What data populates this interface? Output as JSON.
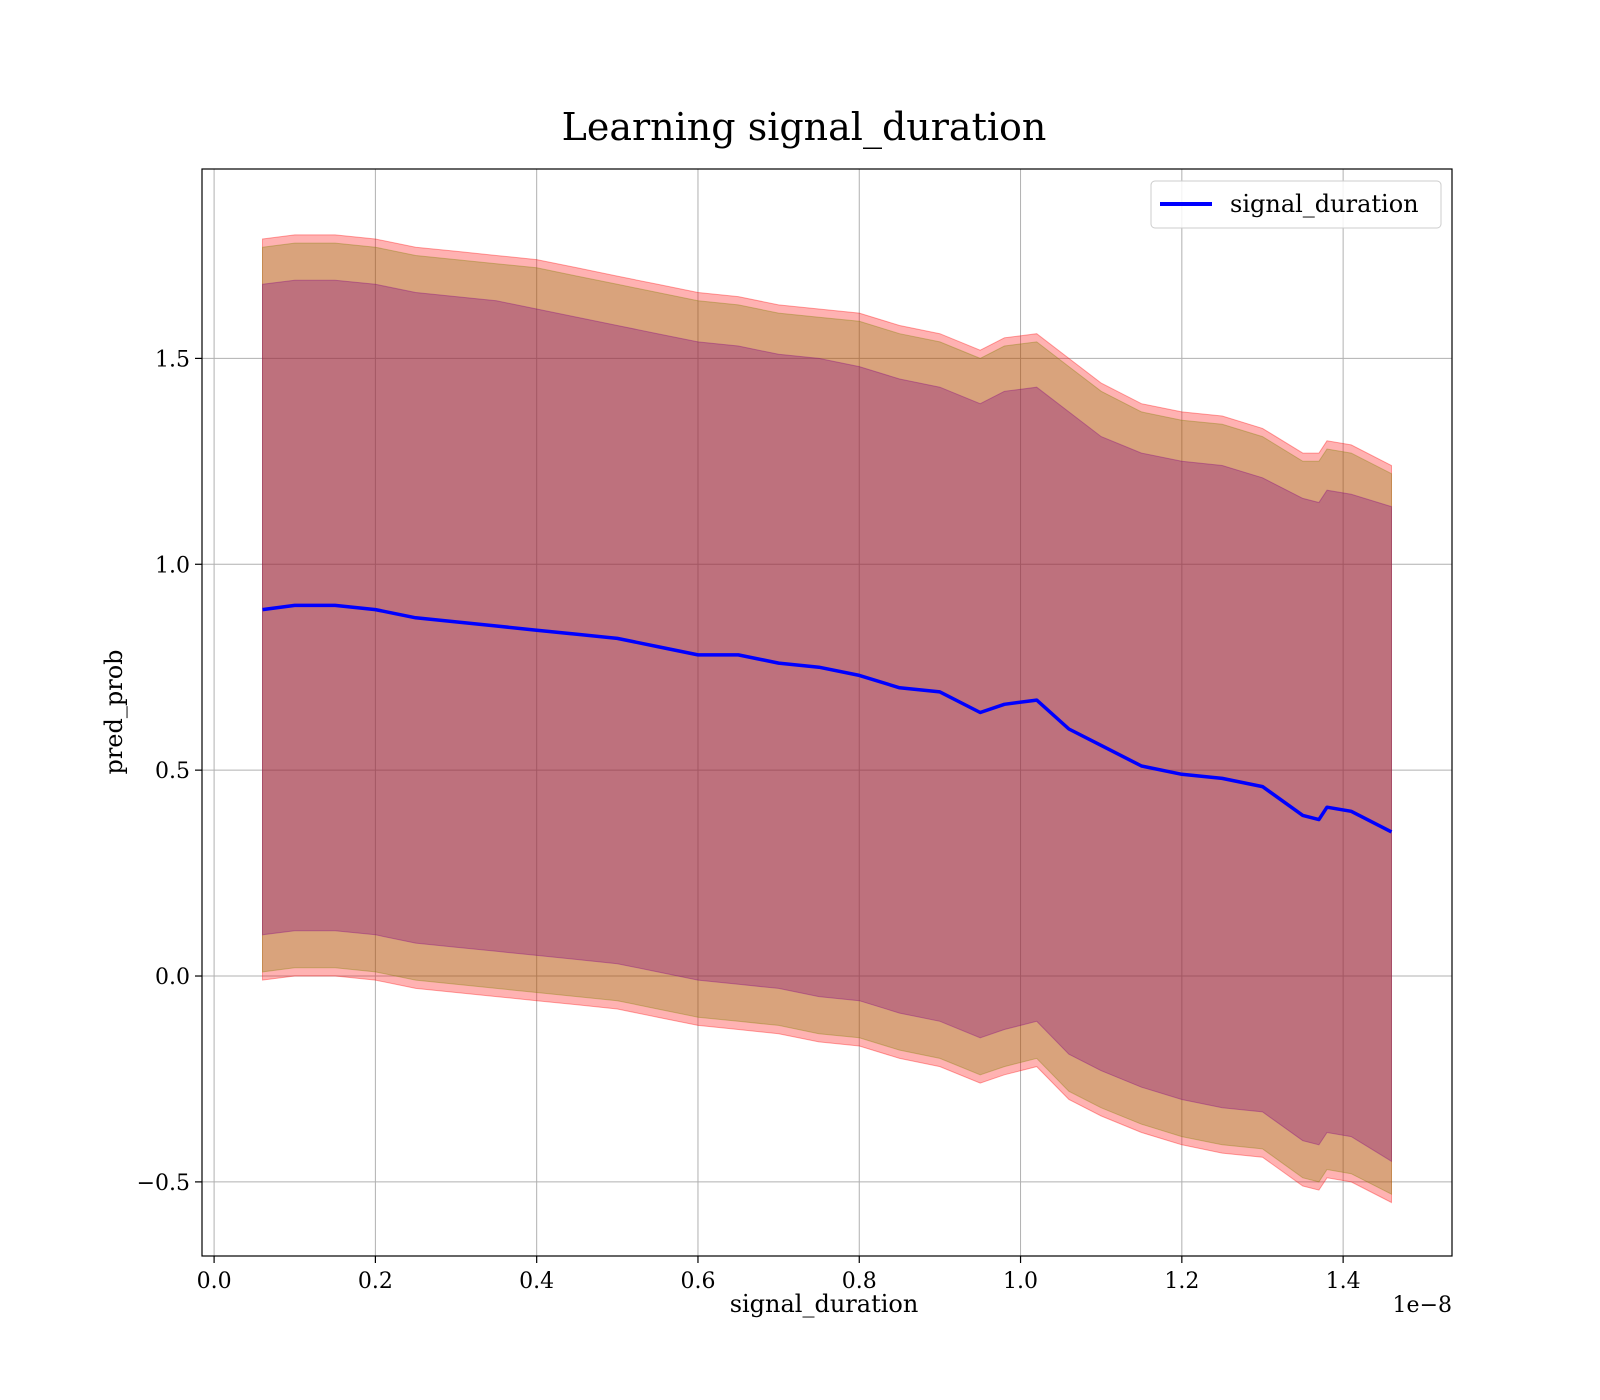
{
  "colors": {
    "line": "#0000ff",
    "band_outer": "#ff0000",
    "band_mid": "#808000",
    "band_inner": "#800080",
    "grid": "#b0b0b0",
    "legend_border": "#cccccc"
  },
  "chart_data": {
    "type": "line",
    "title": "Learning signal_duration",
    "xlabel": "signal_duration",
    "ylabel": "pred_prob",
    "x_offset_text": "1e−8",
    "xlim": [
      -0.015,
      1.535
    ],
    "ylim": [
      -0.68,
      1.96
    ],
    "x_ticks": [
      0.0,
      0.2,
      0.4,
      0.6,
      0.8,
      1.0,
      1.2,
      1.4
    ],
    "x_tick_labels": [
      "0.0",
      "0.2",
      "0.4",
      "0.6",
      "0.8",
      "1.0",
      "1.2",
      "1.4"
    ],
    "y_ticks": [
      -0.5,
      0.0,
      0.5,
      1.0,
      1.5
    ],
    "y_tick_labels": [
      "−0.5",
      "0.0",
      "0.5",
      "1.0",
      "1.5"
    ],
    "grid": true,
    "legend_position": "top-right",
    "x": [
      0.06,
      0.1,
      0.15,
      0.2,
      0.25,
      0.3,
      0.35,
      0.4,
      0.45,
      0.5,
      0.55,
      0.6,
      0.65,
      0.7,
      0.75,
      0.8,
      0.85,
      0.9,
      0.95,
      0.98,
      1.02,
      1.06,
      1.1,
      1.15,
      1.2,
      1.25,
      1.3,
      1.35,
      1.37,
      1.38,
      1.41,
      1.46
    ],
    "series": [
      {
        "name": "signal_duration",
        "values": [
          0.89,
          0.9,
          0.9,
          0.89,
          0.87,
          0.86,
          0.85,
          0.84,
          0.83,
          0.82,
          0.8,
          0.78,
          0.78,
          0.76,
          0.75,
          0.73,
          0.7,
          0.69,
          0.64,
          0.66,
          0.67,
          0.6,
          0.56,
          0.51,
          0.49,
          0.48,
          0.46,
          0.39,
          0.38,
          0.41,
          0.4,
          0.35
        ]
      }
    ],
    "bands": [
      {
        "upper": [
          1.79,
          1.8,
          1.8,
          1.79,
          1.77,
          1.76,
          1.75,
          1.74,
          1.72,
          1.7,
          1.68,
          1.66,
          1.65,
          1.63,
          1.62,
          1.61,
          1.58,
          1.56,
          1.52,
          1.55,
          1.56,
          1.5,
          1.44,
          1.39,
          1.37,
          1.36,
          1.33,
          1.27,
          1.27,
          1.3,
          1.29,
          1.24
        ],
        "lower": [
          -0.01,
          0.0,
          0.0,
          -0.01,
          -0.03,
          -0.04,
          -0.05,
          -0.06,
          -0.07,
          -0.08,
          -0.1,
          -0.12,
          -0.13,
          -0.14,
          -0.16,
          -0.17,
          -0.2,
          -0.22,
          -0.26,
          -0.24,
          -0.22,
          -0.3,
          -0.34,
          -0.38,
          -0.41,
          -0.43,
          -0.44,
          -0.51,
          -0.52,
          -0.49,
          -0.5,
          -0.55
        ]
      },
      {
        "upper": [
          1.77,
          1.78,
          1.78,
          1.77,
          1.75,
          1.74,
          1.73,
          1.72,
          1.7,
          1.68,
          1.66,
          1.64,
          1.63,
          1.61,
          1.6,
          1.59,
          1.56,
          1.54,
          1.5,
          1.53,
          1.54,
          1.48,
          1.42,
          1.37,
          1.35,
          1.34,
          1.31,
          1.25,
          1.25,
          1.28,
          1.27,
          1.22
        ],
        "lower": [
          0.01,
          0.02,
          0.02,
          0.01,
          -0.01,
          -0.02,
          -0.03,
          -0.04,
          -0.05,
          -0.06,
          -0.08,
          -0.1,
          -0.11,
          -0.12,
          -0.14,
          -0.15,
          -0.18,
          -0.2,
          -0.24,
          -0.22,
          -0.2,
          -0.28,
          -0.32,
          -0.36,
          -0.39,
          -0.41,
          -0.42,
          -0.49,
          -0.5,
          -0.47,
          -0.48,
          -0.53
        ]
      },
      {
        "upper": [
          1.68,
          1.69,
          1.69,
          1.68,
          1.66,
          1.65,
          1.64,
          1.62,
          1.6,
          1.58,
          1.56,
          1.54,
          1.53,
          1.51,
          1.5,
          1.48,
          1.45,
          1.43,
          1.39,
          1.42,
          1.43,
          1.37,
          1.31,
          1.27,
          1.25,
          1.24,
          1.21,
          1.16,
          1.15,
          1.18,
          1.17,
          1.14
        ],
        "lower": [
          0.1,
          0.11,
          0.11,
          0.1,
          0.08,
          0.07,
          0.06,
          0.05,
          0.04,
          0.03,
          0.01,
          -0.01,
          -0.02,
          -0.03,
          -0.05,
          -0.06,
          -0.09,
          -0.11,
          -0.15,
          -0.13,
          -0.11,
          -0.19,
          -0.23,
          -0.27,
          -0.3,
          -0.32,
          -0.33,
          -0.4,
          -0.41,
          -0.38,
          -0.39,
          -0.45
        ]
      }
    ]
  }
}
